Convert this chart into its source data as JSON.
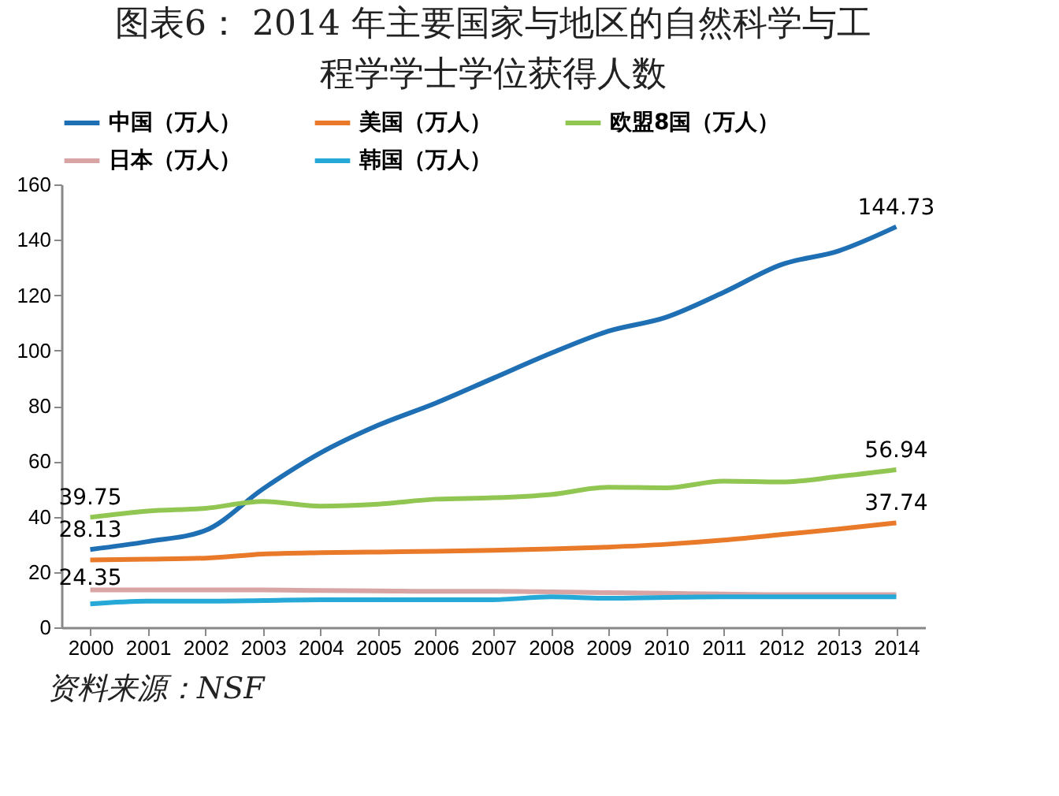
{
  "chart_data": {
    "type": "line",
    "title": "图表6：  2014 年主要国家与地区的自然科学与工程学学士学位获得人数",
    "categories": [
      "2000",
      "2001",
      "2002",
      "2003",
      "2004",
      "2005",
      "2006",
      "2007",
      "2008",
      "2009",
      "2010",
      "2011",
      "2012",
      "2013",
      "2014"
    ],
    "series": [
      {
        "name": "中国（万人）",
        "color": "#1f6fb4",
        "values": [
          28.13,
          31,
          35,
          50,
          63,
          73,
          81,
          90,
          99,
          107,
          112,
          121,
          131,
          136,
          144.73
        ],
        "value_labels": [
          "28.13",
          null,
          null,
          null,
          null,
          null,
          null,
          null,
          null,
          null,
          null,
          null,
          null,
          null,
          "144.73"
        ]
      },
      {
        "name": "美国（万人）",
        "color": "#e87a2a",
        "values": [
          24.35,
          24.6,
          25,
          26.5,
          27,
          27.2,
          27.5,
          27.8,
          28.3,
          29,
          30,
          31.5,
          33.5,
          35.5,
          37.74
        ],
        "value_labels": [
          "24.35",
          null,
          null,
          null,
          null,
          null,
          null,
          null,
          null,
          null,
          null,
          null,
          null,
          null,
          "37.74"
        ]
      },
      {
        "name": "欧盟8国（万人）",
        "color": "#92c653",
        "values": [
          39.75,
          42,
          43,
          45.5,
          43.8,
          44.5,
          46.3,
          46.8,
          48,
          50.6,
          50.4,
          52.8,
          52.5,
          54.5,
          56.94
        ],
        "value_labels": [
          "39.75",
          null,
          null,
          null,
          null,
          null,
          null,
          null,
          null,
          null,
          null,
          null,
          null,
          null,
          "56.94"
        ]
      },
      {
        "name": "日本（万人）",
        "color": "#d8a4a4",
        "values": [
          13.5,
          13.5,
          13.5,
          13.5,
          13.3,
          13.2,
          13,
          13,
          12.8,
          12.5,
          12.3,
          12,
          11.8,
          11.8,
          11.8
        ]
      },
      {
        "name": "韩国（万人）",
        "color": "#27a9d8",
        "values": [
          8.5,
          9.5,
          9.5,
          9.7,
          10,
          10,
          10,
          10,
          11,
          10.5,
          10.8,
          11,
          11,
          11,
          11
        ]
      }
    ],
    "ylim": [
      0,
      160
    ],
    "yticks": [
      0,
      20,
      40,
      60,
      80,
      100,
      120,
      140,
      160
    ],
    "grid": false,
    "legend": "top",
    "annotations": [
      "资料来源：NSF"
    ]
  }
}
